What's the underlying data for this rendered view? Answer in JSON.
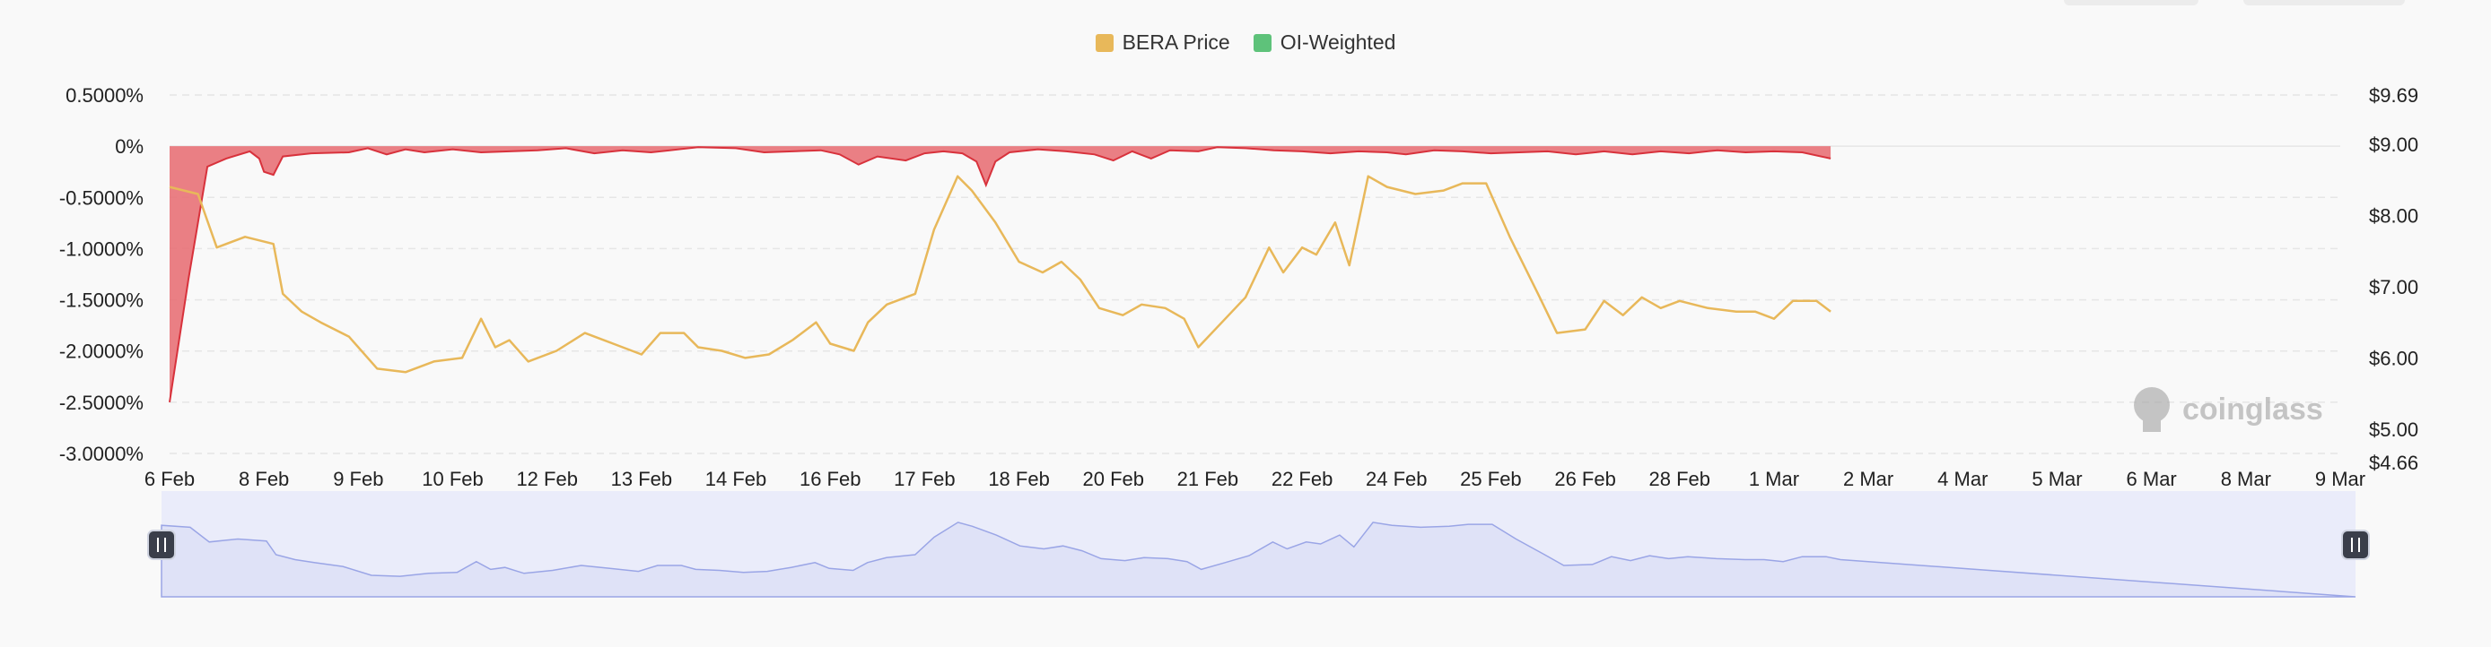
{
  "legend": [
    {
      "label": "BERA Price",
      "color": "#e8b85a"
    },
    {
      "label": "OI-Weighted",
      "color": "#5ec27a"
    }
  ],
  "watermark": {
    "text": "coinglass",
    "icon": "coinglass-logo-icon"
  },
  "colors": {
    "funding_fill": "#e86a70",
    "funding_line": "#d8323c",
    "price_line": "#e8b85a",
    "navigator_fill": "#dfe2f7",
    "navigator_line": "#9aa5e6",
    "grid": "#e6e6e6",
    "axis_text": "#222222"
  },
  "chart_data": {
    "type": "line",
    "x_labels": [
      "6 Feb",
      "8 Feb",
      "9 Feb",
      "10 Feb",
      "12 Feb",
      "13 Feb",
      "14 Feb",
      "16 Feb",
      "17 Feb",
      "18 Feb",
      "20 Feb",
      "21 Feb",
      "22 Feb",
      "24 Feb",
      "25 Feb",
      "26 Feb",
      "28 Feb",
      "1 Mar",
      "2 Mar",
      "4 Mar",
      "5 Mar",
      "6 Mar",
      "8 Mar",
      "9 Mar"
    ],
    "y_left": {
      "ticks": [
        "0.5000%",
        "0%",
        "-0.5000%",
        "-1.0000%",
        "-1.5000%",
        "-2.0000%",
        "-2.5000%",
        "-3.0000%"
      ],
      "min": -3.0,
      "max": 0.5
    },
    "y_right": {
      "ticks": [
        "$9.69",
        "$9.00",
        "$8.00",
        "$7.00",
        "$6.00",
        "$5.00",
        "$4.66"
      ],
      "min": 4.66,
      "max": 9.69
    },
    "series": [
      {
        "name": "BERA Price",
        "axis": "right",
        "points": [
          [
            0,
            8.4
          ],
          [
            0.3,
            8.3
          ],
          [
            0.5,
            7.55
          ],
          [
            0.8,
            7.7
          ],
          [
            1.1,
            7.6
          ],
          [
            1.2,
            6.9
          ],
          [
            1.4,
            6.65
          ],
          [
            1.6,
            6.5
          ],
          [
            1.9,
            6.3
          ],
          [
            2.2,
            5.85
          ],
          [
            2.5,
            5.8
          ],
          [
            2.8,
            5.95
          ],
          [
            3.1,
            6.0
          ],
          [
            3.3,
            6.55
          ],
          [
            3.45,
            6.15
          ],
          [
            3.6,
            6.25
          ],
          [
            3.8,
            5.95
          ],
          [
            4.1,
            6.1
          ],
          [
            4.4,
            6.35
          ],
          [
            4.7,
            6.2
          ],
          [
            5.0,
            6.05
          ],
          [
            5.2,
            6.35
          ],
          [
            5.45,
            6.35
          ],
          [
            5.6,
            6.15
          ],
          [
            5.85,
            6.1
          ],
          [
            6.1,
            6.0
          ],
          [
            6.35,
            6.05
          ],
          [
            6.6,
            6.25
          ],
          [
            6.85,
            6.5
          ],
          [
            7.0,
            6.2
          ],
          [
            7.25,
            6.1
          ],
          [
            7.4,
            6.5
          ],
          [
            7.6,
            6.75
          ],
          [
            7.9,
            6.9
          ],
          [
            8.1,
            7.8
          ],
          [
            8.35,
            8.55
          ],
          [
            8.5,
            8.35
          ],
          [
            8.75,
            7.9
          ],
          [
            9.0,
            7.35
          ],
          [
            9.25,
            7.2
          ],
          [
            9.45,
            7.35
          ],
          [
            9.65,
            7.1
          ],
          [
            9.85,
            6.7
          ],
          [
            10.1,
            6.6
          ],
          [
            10.3,
            6.75
          ],
          [
            10.55,
            6.7
          ],
          [
            10.75,
            6.55
          ],
          [
            10.9,
            6.15
          ],
          [
            11.15,
            6.5
          ],
          [
            11.4,
            6.85
          ],
          [
            11.65,
            7.55
          ],
          [
            11.8,
            7.2
          ],
          [
            12.0,
            7.55
          ],
          [
            12.15,
            7.45
          ],
          [
            12.35,
            7.9
          ],
          [
            12.5,
            7.3
          ],
          [
            12.7,
            8.55
          ],
          [
            12.9,
            8.4
          ],
          [
            13.2,
            8.3
          ],
          [
            13.5,
            8.35
          ],
          [
            13.7,
            8.45
          ],
          [
            13.95,
            8.45
          ],
          [
            14.2,
            7.7
          ],
          [
            14.5,
            6.9
          ],
          [
            14.7,
            6.35
          ],
          [
            15.0,
            6.4
          ],
          [
            15.2,
            6.8
          ],
          [
            15.4,
            6.6
          ],
          [
            15.6,
            6.85
          ],
          [
            15.8,
            6.7
          ],
          [
            16.0,
            6.8
          ],
          [
            16.3,
            6.7
          ],
          [
            16.6,
            6.65
          ],
          [
            16.8,
            6.65
          ],
          [
            17.0,
            6.55
          ],
          [
            17.2,
            6.8
          ],
          [
            17.45,
            6.8
          ],
          [
            17.6,
            6.65
          ]
        ]
      },
      {
        "name": "OI-Weighted",
        "axis": "left",
        "points": [
          [
            0,
            -2.5
          ],
          [
            0.2,
            -1.3
          ],
          [
            0.4,
            -0.2
          ],
          [
            0.6,
            -0.12
          ],
          [
            0.85,
            -0.05
          ],
          [
            0.95,
            -0.12
          ],
          [
            1.0,
            -0.25
          ],
          [
            1.1,
            -0.28
          ],
          [
            1.2,
            -0.1
          ],
          [
            1.5,
            -0.07
          ],
          [
            1.9,
            -0.06
          ],
          [
            2.1,
            -0.02
          ],
          [
            2.3,
            -0.08
          ],
          [
            2.5,
            -0.03
          ],
          [
            2.7,
            -0.06
          ],
          [
            3.0,
            -0.03
          ],
          [
            3.3,
            -0.06
          ],
          [
            3.6,
            -0.05
          ],
          [
            3.9,
            -0.04
          ],
          [
            4.2,
            -0.02
          ],
          [
            4.5,
            -0.07
          ],
          [
            4.8,
            -0.04
          ],
          [
            5.1,
            -0.06
          ],
          [
            5.3,
            -0.04
          ],
          [
            5.6,
            -0.01
          ],
          [
            6.0,
            -0.02
          ],
          [
            6.3,
            -0.06
          ],
          [
            6.6,
            -0.05
          ],
          [
            6.9,
            -0.04
          ],
          [
            7.1,
            -0.08
          ],
          [
            7.3,
            -0.18
          ],
          [
            7.5,
            -0.1
          ],
          [
            7.8,
            -0.14
          ],
          [
            8.0,
            -0.07
          ],
          [
            8.2,
            -0.05
          ],
          [
            8.4,
            -0.07
          ],
          [
            8.55,
            -0.15
          ],
          [
            8.65,
            -0.38
          ],
          [
            8.75,
            -0.15
          ],
          [
            8.9,
            -0.06
          ],
          [
            9.2,
            -0.03
          ],
          [
            9.5,
            -0.05
          ],
          [
            9.8,
            -0.08
          ],
          [
            10.0,
            -0.14
          ],
          [
            10.2,
            -0.05
          ],
          [
            10.4,
            -0.12
          ],
          [
            10.6,
            -0.04
          ],
          [
            10.9,
            -0.05
          ],
          [
            11.1,
            -0.01
          ],
          [
            11.4,
            -0.02
          ],
          [
            11.7,
            -0.04
          ],
          [
            12.0,
            -0.05
          ],
          [
            12.3,
            -0.07
          ],
          [
            12.6,
            -0.05
          ],
          [
            12.9,
            -0.06
          ],
          [
            13.1,
            -0.08
          ],
          [
            13.4,
            -0.04
          ],
          [
            13.7,
            -0.05
          ],
          [
            14.0,
            -0.07
          ],
          [
            14.3,
            -0.06
          ],
          [
            14.6,
            -0.05
          ],
          [
            14.9,
            -0.08
          ],
          [
            15.2,
            -0.05
          ],
          [
            15.5,
            -0.08
          ],
          [
            15.8,
            -0.05
          ],
          [
            16.1,
            -0.07
          ],
          [
            16.4,
            -0.04
          ],
          [
            16.7,
            -0.06
          ],
          [
            17.0,
            -0.05
          ],
          [
            17.3,
            -0.06
          ],
          [
            17.6,
            -0.12
          ]
        ]
      }
    ],
    "grid": true,
    "legend_position": "top-center"
  },
  "navigator": {
    "handles": [
      "left-handle-icon",
      "right-handle-icon"
    ]
  }
}
